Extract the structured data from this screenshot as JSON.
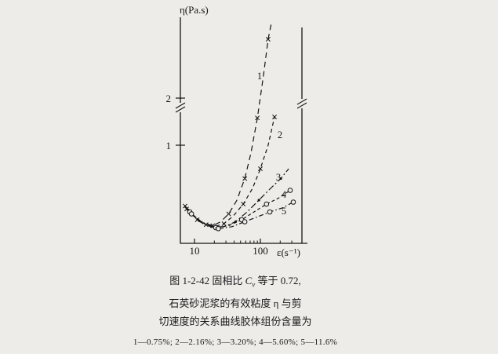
{
  "page": {
    "background": "#edece9",
    "ink": "#141414"
  },
  "caption": {
    "line1_pre": "图 1-2-42  固相比 ",
    "cv": "C",
    "cv_sub": "v",
    "line1_post": " 等于 0.72,",
    "line2": "石英砂泥浆的有效粘度 η 与剪",
    "line3": "切速度的关系曲线胶体组份含量为",
    "line4": "1—0.75%; 2—2.16%; 3—3.20%; 4—5.60%; 5—11.6%"
  },
  "chart_data": {
    "type": "line",
    "title": "",
    "xlabel": "ε(s⁻¹)",
    "ylabel": "η(Pa.s)",
    "x_scale": "log",
    "xlim": [
      6,
      430
    ],
    "ylim": [
      0,
      3.8
    ],
    "x_ticks": [
      10,
      100
    ],
    "x_minor_ticks": [
      20,
      30,
      40,
      50,
      60,
      70,
      80,
      90,
      200,
      300
    ],
    "y_ticks": [
      1,
      2
    ],
    "y_axis_break_between": [
      1,
      2
    ],
    "grid": false,
    "legend_position": "none",
    "series": [
      {
        "name": "1",
        "colloid_content": "0.75%",
        "marker": "x",
        "dash": "7 5",
        "x": [
          7.2,
          9,
          11,
          15,
          19,
          25,
          33,
          44,
          58,
          72,
          90,
          112,
          131,
          147
        ],
        "y": [
          0.38,
          0.3,
          0.24,
          0.2,
          0.18,
          0.22,
          0.3,
          0.44,
          0.66,
          0.92,
          1.58,
          2.5,
          3.25,
          3.6
        ]
      },
      {
        "name": "2",
        "colloid_content": "2.16%",
        "marker": "x",
        "dash": "5 4",
        "x": [
          7.6,
          10.6,
          15,
          20,
          28,
          39,
          55,
          76,
          100,
          131,
          164
        ],
        "y": [
          0.35,
          0.26,
          0.19,
          0.17,
          0.2,
          0.28,
          0.4,
          0.56,
          0.76,
          1.0,
          1.6
        ]
      },
      {
        "name": "3",
        "colloid_content": "3.20%",
        "marker": "dot",
        "dash": "8 3 2 3",
        "x": [
          8,
          12,
          18,
          28,
          42,
          63,
          95,
          143,
          204,
          269
        ],
        "y": [
          0.34,
          0.22,
          0.17,
          0.17,
          0.22,
          0.32,
          0.44,
          0.56,
          0.66,
          0.76
        ]
      },
      {
        "name": "4",
        "colloid_content": "5.60%",
        "marker": "circle",
        "dash": "4 3",
        "x": [
          8.5,
          13,
          21,
          33,
          52,
          80,
          124,
          188,
          283
        ],
        "y": [
          0.32,
          0.21,
          0.16,
          0.18,
          0.24,
          0.32,
          0.4,
          0.46,
          0.54
        ]
      },
      {
        "name": "5",
        "colloid_content": "11.6%",
        "marker": "circle",
        "dash": "6 3 1.5 3",
        "x": [
          9,
          14,
          23,
          37,
          58,
          90,
          139,
          215,
          316
        ],
        "y": [
          0.3,
          0.19,
          0.15,
          0.17,
          0.22,
          0.27,
          0.32,
          0.36,
          0.42
        ]
      }
    ]
  }
}
